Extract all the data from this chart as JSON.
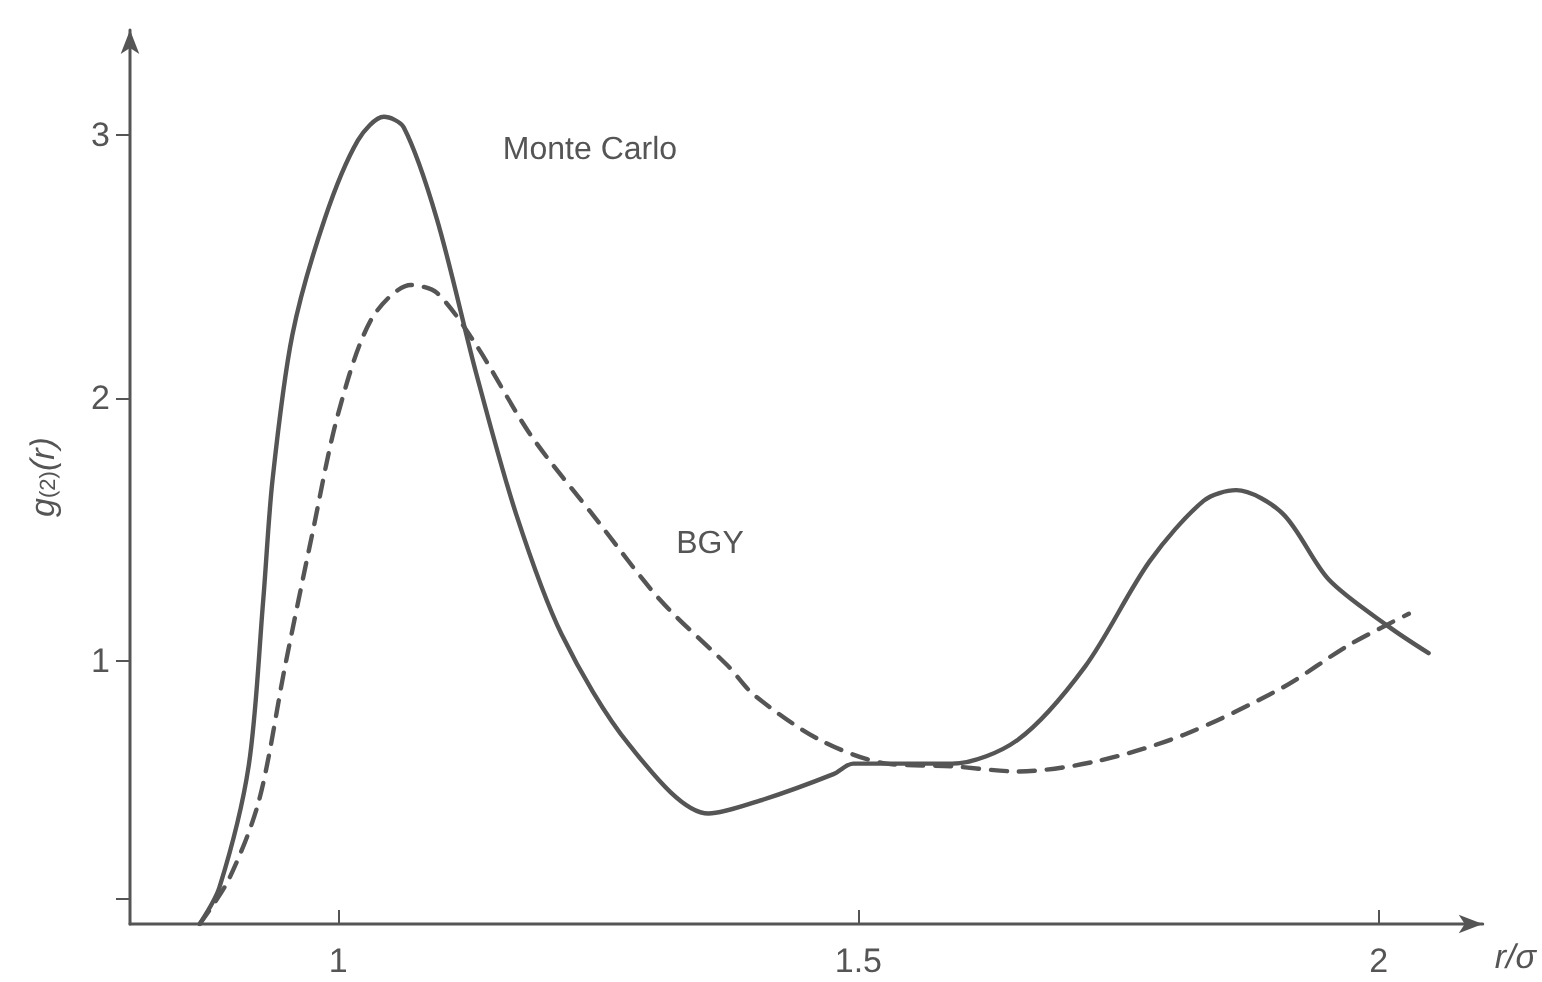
{
  "chart_data": {
    "type": "line",
    "xlabel": "r/σ",
    "ylabel": "g$_{(2)}$(r)",
    "xlim": [
      0.8,
      2.1
    ],
    "xticks": [
      1,
      1.5,
      2
    ],
    "ylim": [
      0,
      3.4
    ],
    "yticks": [
      {
        "value": 0.1,
        "label": null
      },
      1,
      2,
      3
    ],
    "grid": false,
    "marker": "none",
    "series": [
      {
        "color": "#555555",
        "line_style": "solid",
        "x": [
          0.867,
          0.886,
          0.914,
          0.928,
          0.937,
          0.956,
          0.987,
          1.019,
          1.044,
          1.063,
          1.095,
          1.133,
          1.171,
          1.215,
          1.28,
          1.356,
          1.406,
          1.476,
          1.495,
          1.59,
          1.653,
          1.718,
          1.78,
          1.832,
          1.863,
          1.908,
          1.952,
          2.01,
          2.048
        ],
        "values": [
          0,
          0.14,
          0.6,
          1.23,
          1.69,
          2.24,
          2.68,
          2.98,
          3.07,
          3.03,
          2.68,
          2.09,
          1.56,
          1.1,
          0.68,
          0.42,
          0.47,
          0.57,
          0.61,
          0.61,
          0.7,
          0.98,
          1.38,
          1.61,
          1.65,
          1.56,
          1.31,
          1.13,
          1.03
        ]
      },
      {
        "color": "#555555",
        "line_style": "dashed",
        "x": [
          0.867,
          0.895,
          0.924,
          0.949,
          0.975,
          1.0,
          1.032,
          1.07,
          1.095,
          1.133,
          1.185,
          1.248,
          1.31,
          1.375,
          1.4,
          1.463,
          1.527,
          1.59,
          1.653,
          1.73,
          1.813,
          1.908,
          1.971,
          2.029
        ],
        "values": [
          0,
          0.17,
          0.47,
          0.98,
          1.48,
          1.94,
          2.3,
          2.43,
          2.4,
          2.2,
          1.86,
          1.54,
          1.23,
          0.98,
          0.87,
          0.7,
          0.61,
          0.6,
          0.58,
          0.62,
          0.72,
          0.9,
          1.06,
          1.18
        ]
      }
    ],
    "annotations": [
      "Monte Carlo",
      "BGY"
    ]
  }
}
